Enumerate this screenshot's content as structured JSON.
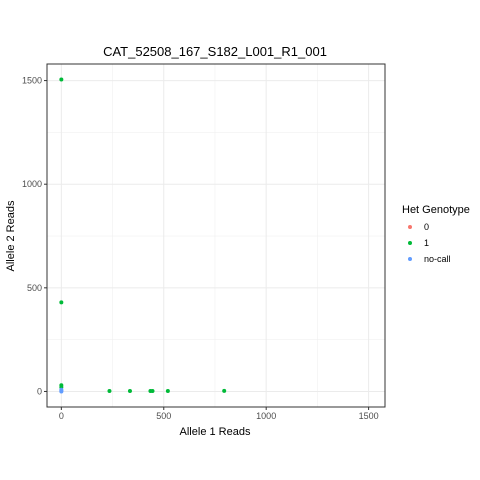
{
  "chart_data": {
    "type": "scatter",
    "title": "CAT_52508_167_S182_L001_R1_001",
    "xlabel": "Allele 1 Reads",
    "ylabel": "Allele 2 Reads",
    "xlim": [
      -70,
      1580
    ],
    "ylim": [
      -75,
      1580
    ],
    "x_ticks": [
      0,
      500,
      1000,
      1500
    ],
    "y_ticks": [
      0,
      500,
      1000,
      1500
    ],
    "grid": true,
    "legend": {
      "title": "Het Genotype",
      "placement": "right",
      "entries": [
        {
          "label": "0",
          "color": "#F8766D"
        },
        {
          "label": "1",
          "color": "#00BA38"
        },
        {
          "label": "no-call",
          "color": "#619CFF"
        }
      ]
    },
    "series": [
      {
        "name": "0",
        "color": "#F8766D",
        "points": []
      },
      {
        "name": "1",
        "color": "#00BA38",
        "points": [
          {
            "x": 0,
            "y": 1505
          },
          {
            "x": 0,
            "y": 430
          },
          {
            "x": 0,
            "y": 30
          },
          {
            "x": 0,
            "y": 20
          },
          {
            "x": 235,
            "y": 2
          },
          {
            "x": 335,
            "y": 2
          },
          {
            "x": 435,
            "y": 2
          },
          {
            "x": 445,
            "y": 2
          },
          {
            "x": 520,
            "y": 2
          },
          {
            "x": 795,
            "y": 3
          }
        ]
      },
      {
        "name": "no-call",
        "color": "#619CFF",
        "points": [
          {
            "x": 0,
            "y": 8
          },
          {
            "x": 0,
            "y": 3
          },
          {
            "x": 0,
            "y": 0
          }
        ]
      }
    ]
  }
}
